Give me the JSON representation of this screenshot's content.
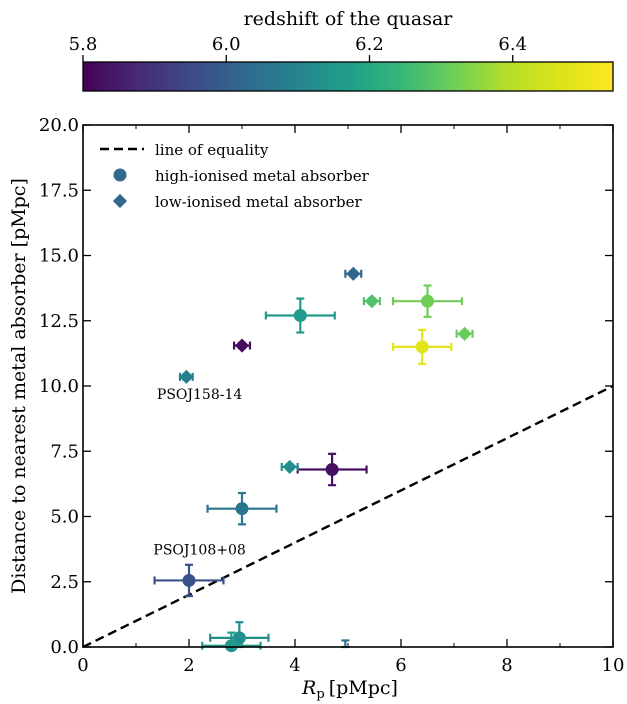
{
  "colorbar": {
    "label": "redshift of the quasar",
    "min": 5.8,
    "max": 6.54,
    "ticks": [
      5.8,
      6.0,
      6.2,
      6.4
    ],
    "tick_labels": [
      "5.8",
      "6.0",
      "6.2",
      "6.4"
    ]
  },
  "chart_data": {
    "type": "scatter",
    "xlabel_main": "R",
    "xlabel_sub": "p",
    "xlabel_unit": "[pMpc]",
    "ylabel": "Distance to nearest metal absorber [pMpc]",
    "xlim": [
      0,
      10
    ],
    "ylim": [
      0,
      20
    ],
    "xticks": [
      0,
      2,
      4,
      6,
      8,
      10
    ],
    "xtick_labels": [
      "0",
      "2",
      "4",
      "6",
      "8",
      "10"
    ],
    "yticks": [
      0,
      2.5,
      5,
      7.5,
      10,
      12.5,
      15,
      17.5,
      20
    ],
    "ytick_labels": [
      "0.0",
      "2.5",
      "5.0",
      "7.5",
      "10.0",
      "12.5",
      "15.0",
      "17.5",
      "20.0"
    ],
    "legend": {
      "placement": "upper-left",
      "entries": [
        "line of equality",
        "high-ionised metal absorber",
        "low-ionised metal absorber"
      ]
    },
    "equality_line": {
      "x": [
        0,
        10
      ],
      "y": [
        0,
        10
      ]
    },
    "high_ionised": [
      {
        "x": 4.1,
        "y": 12.7,
        "xerr": 0.65,
        "yerr": 0.65,
        "z": 6.16
      },
      {
        "x": 6.5,
        "y": 13.25,
        "xerr": 0.65,
        "yerr": 0.6,
        "z": 6.32
      },
      {
        "x": 6.4,
        "y": 11.5,
        "xerr": 0.55,
        "yerr": 0.65,
        "z": 6.48
      },
      {
        "x": 4.7,
        "y": 6.8,
        "xerr": 0.65,
        "yerr": 0.6,
        "z": 5.83
      },
      {
        "x": 3.0,
        "y": 5.3,
        "xerr": 0.65,
        "yerr": 0.6,
        "z": 6.06
      },
      {
        "x": 2.0,
        "y": 2.55,
        "xerr": 0.65,
        "yerr": 0.6,
        "z": 5.97
      },
      {
        "x": 2.95,
        "y": 0.35,
        "xerr": 0.55,
        "yerr": 0.6,
        "z": 6.13
      },
      {
        "x": 2.8,
        "y": 0.05,
        "xerr": 0.55,
        "yerr": 0.5,
        "z": 6.16
      },
      {
        "x": 4.95,
        "y": 0.0,
        "xerr": 0.0,
        "yerr": 0.25,
        "z": 6.04
      }
    ],
    "low_ionised": [
      {
        "x": 5.1,
        "y": 14.3,
        "xerr": 0.15,
        "yerr": 0.1,
        "z": 6.02
      },
      {
        "x": 5.45,
        "y": 13.25,
        "xerr": 0.15,
        "yerr": 0.1,
        "z": 6.28
      },
      {
        "x": 7.2,
        "y": 12.0,
        "xerr": 0.15,
        "yerr": 0.1,
        "z": 6.31
      },
      {
        "x": 3.0,
        "y": 11.55,
        "xerr": 0.15,
        "yerr": 0.1,
        "z": 5.82
      },
      {
        "x": 1.95,
        "y": 10.35,
        "xerr": 0.12,
        "yerr": 0.1,
        "z": 6.09
      },
      {
        "x": 3.9,
        "y": 6.9,
        "xerr": 0.15,
        "yerr": 0.1,
        "z": 6.13
      }
    ],
    "annotations": [
      {
        "text": "PSOJ158-14",
        "x": 2.2,
        "y": 9.5
      },
      {
        "text": "PSOJ108+08",
        "x": 2.2,
        "y": 3.55
      }
    ]
  }
}
